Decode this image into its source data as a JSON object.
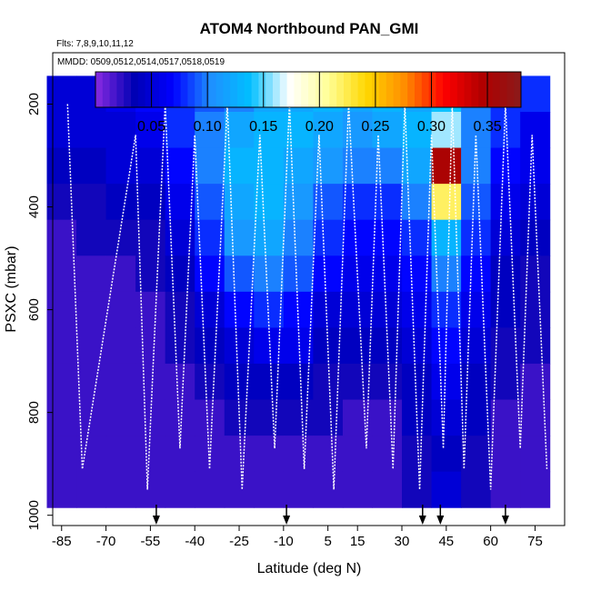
{
  "chart_data": {
    "type": "heatmap",
    "title": "ATOM4 Northbound PAN_GMI",
    "subtitle_flights": "Flts: 7,8,9,10,11,12",
    "subtitle_dates": "MMDD: 0509,0512,0514,0517,0518,0519",
    "xlabel": "Latitude (deg N)",
    "ylabel": "PSXC (mbar)",
    "xlim": [
      -88,
      85
    ],
    "ylim": [
      1020,
      100
    ],
    "x_tick_labels": [
      "-85",
      "-70",
      "-55",
      "-40",
      "-25",
      "-10",
      "5",
      "15",
      "30",
      "45",
      "60",
      "75"
    ],
    "x_tick_values": [
      -85,
      -70,
      -55,
      -40,
      -25,
      -10,
      5,
      15,
      30,
      45,
      60,
      75
    ],
    "y_tick_labels": [
      "200",
      "400",
      "600",
      "800",
      "1000"
    ],
    "y_tick_values": [
      200,
      400,
      600,
      800,
      1000
    ],
    "colorbar": {
      "range": [
        0,
        0.38
      ],
      "tick_labels": [
        "0.05",
        "0.10",
        "0.15",
        "0.20",
        "0.25",
        "0.30",
        "0.35"
      ],
      "tick_values": [
        0.05,
        0.1,
        0.15,
        0.2,
        0.25,
        0.3,
        0.35
      ],
      "colors": [
        "#8a2be2",
        "#0000b4",
        "#0000ff",
        "#1e90ff",
        "#00bfff",
        "#ffffff",
        "#ffff99",
        "#ffd700",
        "#ff8c00",
        "#ff0000",
        "#b00000",
        "#8b1a1a"
      ]
    },
    "profile_turnaround_latitudes": [
      -83,
      -78,
      -60,
      -56,
      -50,
      -45,
      -40,
      -35,
      -29,
      -24,
      -18,
      -13,
      -8,
      -3,
      2,
      7,
      12,
      18,
      22,
      27,
      31,
      36,
      40,
      44,
      47,
      51,
      55,
      60,
      65,
      70,
      74,
      79
    ],
    "takeoff_landing_arrow_latitudes": [
      -53,
      -9,
      37,
      43,
      65
    ],
    "sample_grid": {
      "pressure_bins": [
        180,
        250,
        320,
        390,
        460,
        530,
        600,
        670,
        740,
        810,
        880,
        950
      ],
      "latitude_bins": [
        -85,
        -75,
        -65,
        -55,
        -45,
        -35,
        -25,
        -15,
        -5,
        5,
        15,
        25,
        35,
        45,
        55,
        65,
        75
      ],
      "values_description_note": "Approximate gridded PAN mixing ratio (ppb) read from color; rows = pressure bins, columns = latitude bins",
      "values": [
        [
          0.05,
          0.05,
          0.06,
          0.07,
          0.08,
          0.09,
          0.1,
          0.12,
          0.12,
          0.13,
          0.12,
          0.13,
          0.12,
          0.14,
          0.1,
          0.08,
          0.08
        ],
        [
          0.05,
          0.05,
          0.05,
          0.06,
          0.08,
          0.1,
          0.12,
          0.13,
          0.13,
          0.12,
          0.11,
          0.12,
          0.13,
          0.16,
          0.1,
          0.08,
          0.06
        ],
        [
          0.04,
          0.04,
          0.05,
          0.05,
          0.07,
          0.1,
          0.13,
          0.13,
          0.12,
          0.11,
          0.1,
          0.1,
          0.12,
          0.35,
          0.1,
          0.07,
          0.06
        ],
        [
          0.03,
          0.03,
          0.04,
          0.04,
          0.06,
          0.09,
          0.12,
          0.13,
          0.11,
          0.09,
          0.08,
          0.08,
          0.1,
          0.22,
          0.09,
          0.06,
          0.05
        ],
        [
          0.02,
          0.03,
          0.03,
          0.03,
          0.05,
          0.08,
          0.11,
          0.12,
          0.1,
          0.08,
          0.07,
          0.07,
          0.08,
          0.13,
          0.08,
          0.05,
          0.04
        ],
        [
          0.02,
          0.02,
          0.02,
          0.03,
          0.04,
          0.07,
          0.09,
          0.1,
          0.09,
          0.07,
          0.06,
          0.06,
          0.07,
          0.1,
          0.07,
          0.04,
          0.03
        ],
        [
          0.02,
          0.02,
          0.02,
          0.02,
          0.03,
          0.05,
          0.07,
          0.08,
          0.07,
          0.05,
          0.05,
          0.05,
          0.06,
          0.08,
          0.06,
          0.04,
          0.03
        ],
        [
          0.02,
          0.02,
          0.02,
          0.02,
          0.03,
          0.04,
          0.05,
          0.06,
          0.06,
          0.04,
          0.04,
          0.04,
          0.05,
          0.07,
          0.05,
          0.03,
          0.03
        ],
        [
          0.02,
          0.02,
          0.02,
          0.02,
          0.02,
          0.03,
          0.04,
          0.04,
          0.04,
          0.03,
          0.03,
          0.03,
          0.04,
          0.06,
          0.04,
          0.03,
          0.02
        ],
        [
          0.02,
          0.02,
          0.02,
          0.02,
          0.02,
          0.02,
          0.03,
          0.03,
          0.03,
          0.03,
          0.02,
          0.02,
          0.04,
          0.05,
          0.04,
          0.02,
          0.02
        ],
        [
          0.02,
          0.02,
          0.02,
          0.02,
          0.02,
          0.02,
          0.02,
          0.02,
          0.02,
          0.02,
          0.02,
          0.02,
          0.03,
          0.04,
          0.03,
          0.02,
          0.02
        ],
        [
          0.02,
          0.02,
          0.02,
          0.02,
          0.02,
          0.02,
          0.02,
          0.02,
          0.02,
          0.02,
          0.02,
          0.02,
          0.03,
          0.05,
          0.03,
          0.02,
          0.02
        ]
      ]
    }
  }
}
